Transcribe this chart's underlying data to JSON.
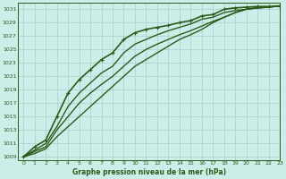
{
  "title": "Graphe pression niveau de la mer (hPa)",
  "background_color": "#cceee8",
  "grid_color": "#aacccc",
  "line_color": "#2d5a1b",
  "text_color": "#2d5a1b",
  "xlim": [
    -0.5,
    23
  ],
  "ylim": [
    1008.5,
    1032
  ],
  "yticks": [
    1009,
    1011,
    1013,
    1015,
    1017,
    1019,
    1021,
    1023,
    1025,
    1027,
    1029,
    1031
  ],
  "xticks": [
    0,
    1,
    2,
    3,
    4,
    5,
    6,
    7,
    8,
    9,
    10,
    11,
    12,
    13,
    14,
    15,
    16,
    17,
    18,
    19,
    20,
    21,
    22,
    23
  ],
  "series": [
    {
      "x": [
        0,
        1,
        2,
        3,
        4,
        5,
        6,
        7,
        8,
        9,
        10,
        11,
        12,
        13,
        14,
        15,
        16,
        17,
        18,
        19,
        20,
        21,
        22,
        23
      ],
      "y": [
        1009.0,
        1010.5,
        1011.5,
        1015.0,
        1018.5,
        1020.5,
        1022.0,
        1023.5,
        1024.5,
        1026.5,
        1027.5,
        1028.0,
        1028.3,
        1028.6,
        1029.0,
        1029.3,
        1030.0,
        1030.2,
        1031.0,
        1031.2,
        1031.3,
        1031.4,
        1031.4,
        1031.5
      ],
      "marker": true,
      "linewidth": 1.2
    },
    {
      "x": [
        0,
        1,
        2,
        3,
        4,
        5,
        6,
        7,
        8,
        9,
        10,
        11,
        12,
        13,
        14,
        15,
        16,
        17,
        18,
        19,
        20,
        21,
        22,
        23
      ],
      "y": [
        1009.0,
        1010.0,
        1011.0,
        1013.5,
        1016.5,
        1018.5,
        1020.0,
        1021.5,
        1022.5,
        1024.5,
        1025.8,
        1026.5,
        1027.2,
        1027.8,
        1028.3,
        1028.8,
        1029.5,
        1029.8,
        1030.5,
        1030.8,
        1031.0,
        1031.2,
        1031.3,
        1031.5
      ],
      "marker": false,
      "linewidth": 1.0
    },
    {
      "x": [
        0,
        1,
        2,
        3,
        4,
        5,
        6,
        7,
        8,
        9,
        10,
        11,
        12,
        13,
        14,
        15,
        16,
        17,
        18,
        19,
        20,
        21,
        22,
        23
      ],
      "y": [
        1009.0,
        1009.8,
        1010.5,
        1013.0,
        1015.0,
        1017.0,
        1018.5,
        1019.8,
        1021.0,
        1022.5,
        1024.0,
        1025.0,
        1025.8,
        1026.5,
        1027.2,
        1027.8,
        1028.5,
        1029.2,
        1029.8,
        1030.5,
        1031.0,
        1031.2,
        1031.3,
        1031.5
      ],
      "marker": false,
      "linewidth": 1.0
    },
    {
      "x": [
        0,
        1,
        2,
        3,
        4,
        5,
        6,
        7,
        8,
        9,
        10,
        11,
        12,
        13,
        14,
        15,
        16,
        17,
        18,
        19,
        20,
        21,
        22,
        23
      ],
      "y": [
        1009.0,
        1009.5,
        1010.2,
        1012.0,
        1013.5,
        1015.0,
        1016.5,
        1018.0,
        1019.5,
        1021.0,
        1022.5,
        1023.5,
        1024.5,
        1025.5,
        1026.5,
        1027.2,
        1028.0,
        1029.0,
        1029.8,
        1030.5,
        1031.0,
        1031.2,
        1031.3,
        1031.5
      ],
      "marker": false,
      "linewidth": 1.0
    }
  ],
  "figwidth": 3.2,
  "figheight": 2.0,
  "dpi": 100
}
